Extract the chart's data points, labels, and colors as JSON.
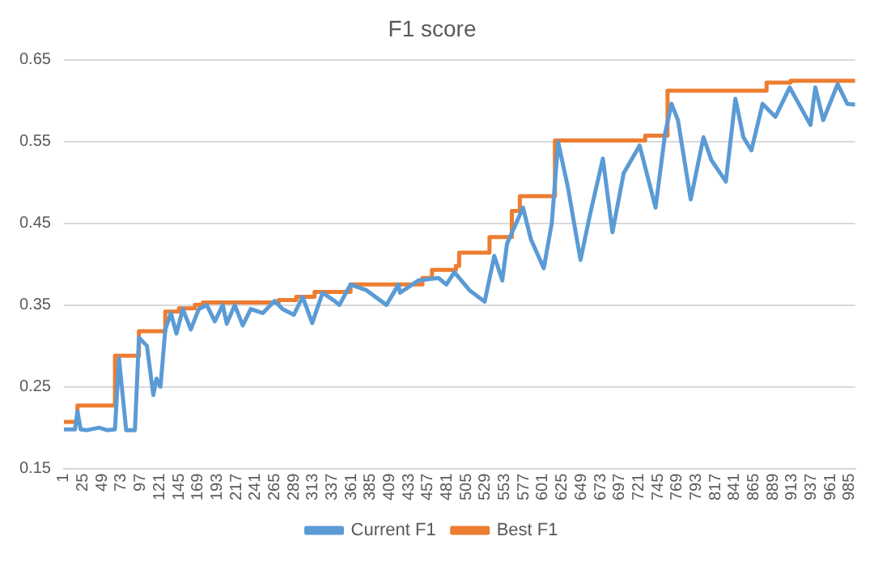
{
  "chart_data": {
    "type": "line",
    "title": "F1 score",
    "xlim": [
      1,
      992
    ],
    "xticks": [
      1,
      25,
      49,
      73,
      97,
      121,
      145,
      169,
      193,
      217,
      241,
      265,
      289,
      313,
      337,
      361,
      385,
      409,
      433,
      457,
      481,
      505,
      529,
      553,
      577,
      601,
      625,
      649,
      673,
      697,
      721,
      745,
      769,
      793,
      817,
      841,
      865,
      889,
      913,
      937,
      961,
      985
    ],
    "ylim": [
      0.15,
      0.65
    ],
    "yticks": [
      0.15,
      0.25,
      0.35,
      0.45,
      0.55,
      0.65
    ],
    "grid": "y",
    "legend": "bottom",
    "marker": "none",
    "line_style": "solid",
    "series": [
      {
        "name": "Current F1",
        "color": "#5b9bd5",
        "x": [
          1,
          15,
          18,
          22,
          30,
          45,
          55,
          65,
          70,
          79,
          90,
          95,
          105,
          113,
          117,
          122,
          128,
          135,
          142,
          150,
          160,
          170,
          180,
          190,
          200,
          205,
          215,
          225,
          235,
          250,
          265,
          275,
          289,
          300,
          312,
          325,
          340,
          346,
          360,
          380,
          405,
          420,
          422,
          445,
          470,
          480,
          490,
          509,
          528,
          540,
          550,
          556,
          576,
          586,
          602,
          612,
          620,
          632,
          648,
          660,
          676,
          688,
          702,
          722,
          742,
          754,
          762,
          770,
          786,
          802,
          812,
          830,
          842,
          852,
          862,
          876,
          892,
          910,
          936,
          942,
          952,
          970,
          982,
          992
        ],
        "values": [
          0.198,
          0.198,
          0.22,
          0.198,
          0.197,
          0.2,
          0.197,
          0.198,
          0.285,
          0.197,
          0.197,
          0.31,
          0.3,
          0.24,
          0.26,
          0.25,
          0.32,
          0.34,
          0.315,
          0.345,
          0.32,
          0.345,
          0.35,
          0.33,
          0.35,
          0.327,
          0.35,
          0.325,
          0.345,
          0.34,
          0.355,
          0.345,
          0.338,
          0.36,
          0.328,
          0.365,
          0.355,
          0.35,
          0.375,
          0.368,
          0.35,
          0.375,
          0.365,
          0.38,
          0.383,
          0.375,
          0.39,
          0.368,
          0.354,
          0.41,
          0.38,
          0.425,
          0.469,
          0.43,
          0.395,
          0.45,
          0.549,
          0.495,
          0.405,
          0.461,
          0.529,
          0.439,
          0.511,
          0.545,
          0.469,
          0.56,
          0.596,
          0.576,
          0.479,
          0.555,
          0.527,
          0.501,
          0.602,
          0.555,
          0.539,
          0.596,
          0.58,
          0.616,
          0.57,
          0.616,
          0.576,
          0.62,
          0.596,
          0.595
        ]
      },
      {
        "name": "Best F1",
        "color": "#ed7d31",
        "type": "step",
        "x": [
          1,
          18,
          65,
          95,
          128,
          145,
          165,
          175,
          270,
          292,
          315,
          360,
          450,
          462,
          492,
          496,
          534,
          562,
          572,
          616,
          729,
          757,
          881,
          911,
          992
        ],
        "values": [
          0.207,
          0.227,
          0.288,
          0.318,
          0.342,
          0.346,
          0.35,
          0.353,
          0.356,
          0.36,
          0.366,
          0.375,
          0.383,
          0.393,
          0.398,
          0.414,
          0.433,
          0.465,
          0.483,
          0.551,
          0.557,
          0.612,
          0.622,
          0.624,
          0.624
        ]
      }
    ]
  }
}
